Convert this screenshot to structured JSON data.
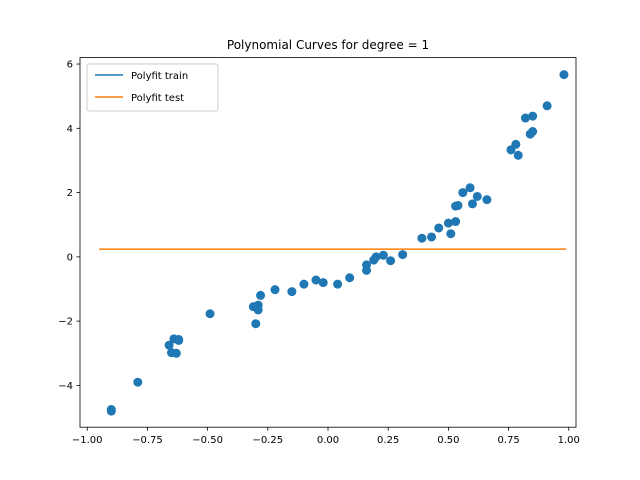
{
  "chart_data": {
    "type": "scatter",
    "title": "Polynomial Curves for degree = 1",
    "xlabel": "",
    "ylabel": "",
    "xlim": [
      -1.03,
      1.03
    ],
    "ylim": [
      -5.3,
      6.2
    ],
    "xticks": [
      -1.0,
      -0.75,
      -0.5,
      -0.25,
      0.0,
      0.25,
      0.5,
      0.75,
      1.0
    ],
    "xtick_labels": [
      "−1.00",
      "−0.75",
      "−0.50",
      "−0.25",
      "0.00",
      "0.25",
      "0.50",
      "0.75",
      "1.00"
    ],
    "yticks": [
      -4,
      -2,
      0,
      2,
      4,
      6
    ],
    "ytick_labels": [
      "−4",
      "−2",
      "0",
      "2",
      "4",
      "6"
    ],
    "grid": false,
    "legend_position": "top-left",
    "series": [
      {
        "name": "Polyfit train",
        "kind": "line",
        "color": "#1f77b4",
        "x": [],
        "y": []
      },
      {
        "name": "Polyfit test",
        "kind": "line",
        "color": "#ff7f0e",
        "x": [
          -0.95,
          0.99
        ],
        "y": [
          0.24,
          0.24
        ]
      },
      {
        "name": "",
        "kind": "scatter",
        "color": "#1f77b4",
        "x": [
          -0.9,
          -0.9,
          -0.79,
          -0.66,
          -0.65,
          -0.64,
          -0.63,
          -0.62,
          -0.62,
          -0.49,
          -0.31,
          -0.3,
          -0.29,
          -0.29,
          -0.28,
          -0.22,
          -0.15,
          -0.1,
          -0.05,
          -0.02,
          0.04,
          0.09,
          0.16,
          0.16,
          0.19,
          0.2,
          0.23,
          0.26,
          0.31,
          0.39,
          0.43,
          0.46,
          0.5,
          0.51,
          0.53,
          0.53,
          0.54,
          0.56,
          0.59,
          0.6,
          0.62,
          0.66,
          0.76,
          0.78,
          0.79,
          0.82,
          0.84,
          0.85,
          0.85,
          0.91,
          0.98
        ],
        "y": [
          -4.75,
          -4.8,
          -3.9,
          -2.75,
          -2.98,
          -2.55,
          -3.0,
          -2.6,
          -2.57,
          -1.77,
          -1.55,
          -2.08,
          -1.5,
          -1.65,
          -1.2,
          -1.02,
          -1.08,
          -0.85,
          -0.72,
          -0.8,
          -0.85,
          -0.65,
          -0.25,
          -0.42,
          -0.1,
          0.0,
          0.05,
          -0.12,
          0.07,
          0.58,
          0.62,
          0.9,
          1.05,
          0.72,
          1.1,
          1.58,
          1.6,
          2.0,
          2.15,
          1.65,
          1.88,
          1.78,
          3.33,
          3.5,
          3.16,
          4.32,
          3.82,
          4.38,
          3.9,
          4.7,
          5.67
        ]
      }
    ]
  }
}
